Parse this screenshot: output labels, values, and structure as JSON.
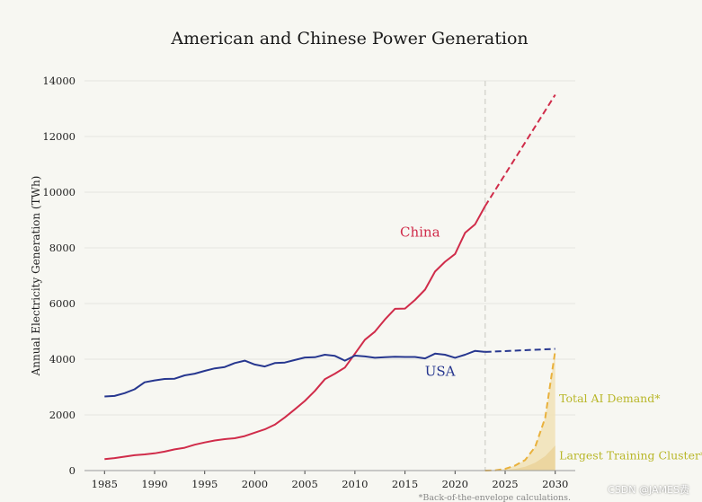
{
  "chart_data": {
    "type": "line",
    "title": "American and Chinese Power Generation",
    "xlabel": "",
    "ylabel": "Annual Electricity Generation (TWh)",
    "xlim": [
      1983,
      2032
    ],
    "ylim": [
      0,
      14000
    ],
    "x_ticks": [
      1985,
      1990,
      1995,
      2000,
      2005,
      2010,
      2015,
      2020,
      2025,
      2030
    ],
    "y_ticks": [
      0,
      2000,
      4000,
      6000,
      8000,
      10000,
      12000,
      14000
    ],
    "grid": true,
    "divider_year": 2023,
    "series": [
      {
        "name": "China",
        "color": "#d02c4a",
        "style": "solid",
        "x": [
          1985,
          1986,
          1987,
          1988,
          1989,
          1990,
          1991,
          1992,
          1993,
          1994,
          1995,
          1996,
          1997,
          1998,
          1999,
          2000,
          2001,
          2002,
          2003,
          2004,
          2005,
          2006,
          2007,
          2008,
          2009,
          2010,
          2011,
          2012,
          2013,
          2014,
          2015,
          2016,
          2017,
          2018,
          2019,
          2020,
          2021,
          2022,
          2023
        ],
        "values": [
          410,
          450,
          500,
          550,
          580,
          620,
          680,
          760,
          820,
          930,
          1010,
          1080,
          1130,
          1160,
          1240,
          1360,
          1480,
          1650,
          1910,
          2200,
          2500,
          2860,
          3280,
          3480,
          3700,
          4200,
          4700,
          4990,
          5430,
          5810,
          5820,
          6130,
          6500,
          7150,
          7500,
          7780,
          8540,
          8850,
          9500
        ]
      },
      {
        "name": "China projection",
        "color": "#d02c4a",
        "style": "dashed",
        "x": [
          2023,
          2030
        ],
        "values": [
          9500,
          13500
        ]
      },
      {
        "name": "USA",
        "color": "#27378f",
        "style": "solid",
        "x": [
          1985,
          1986,
          1987,
          1988,
          1989,
          1990,
          1991,
          1992,
          1993,
          1994,
          1995,
          1996,
          1997,
          1998,
          1999,
          2000,
          2001,
          2002,
          2003,
          2004,
          2005,
          2006,
          2007,
          2008,
          2009,
          2010,
          2011,
          2012,
          2013,
          2014,
          2015,
          2016,
          2017,
          2018,
          2019,
          2020,
          2021,
          2022,
          2023
        ],
        "values": [
          2660,
          2680,
          2780,
          2920,
          3170,
          3240,
          3290,
          3300,
          3420,
          3480,
          3580,
          3670,
          3720,
          3860,
          3950,
          3810,
          3740,
          3860,
          3880,
          3970,
          4060,
          4070,
          4160,
          4120,
          3950,
          4130,
          4100,
          4050,
          4070,
          4090,
          4080,
          4080,
          4030,
          4200,
          4160,
          4050,
          4160,
          4300,
          4260
        ]
      },
      {
        "name": "USA projection",
        "color": "#27378f",
        "style": "dashed",
        "x": [
          2023,
          2030
        ],
        "values": [
          4260,
          4370
        ]
      },
      {
        "name": "Total AI Demand*",
        "color": "#e9b13c",
        "fill": "#f1e2b6",
        "style": "dashed-area",
        "x": [
          2023,
          2024,
          2025,
          2026,
          2027,
          2028,
          2029,
          2030
        ],
        "values": [
          0,
          10,
          60,
          180,
          380,
          850,
          1900,
          4300
        ]
      },
      {
        "name": "Largest Training Cluster*",
        "color": "#e7c98a",
        "fill": "#ebd39a",
        "style": "area",
        "x": [
          2023,
          2024,
          2025,
          2026,
          2027,
          2028,
          2029,
          2030
        ],
        "values": [
          0,
          5,
          20,
          60,
          140,
          280,
          520,
          900
        ]
      }
    ],
    "annotations": [
      {
        "text": "China",
        "x": 2016.5,
        "y": 8400,
        "color": "#d02c4a"
      },
      {
        "text": "USA",
        "x": 2018.5,
        "y": 3400,
        "color": "#27378f"
      },
      {
        "text": "Total AI Demand*",
        "x": 2030.4,
        "y": 2450,
        "color": "#b9b72a"
      },
      {
        "text": "Largest Training Cluster*",
        "x": 2030.4,
        "y": 400,
        "color": "#b9b72a"
      }
    ],
    "footnote": "*Back-of-the-envelope calculations."
  },
  "watermark": "CSDN @JAMES费"
}
